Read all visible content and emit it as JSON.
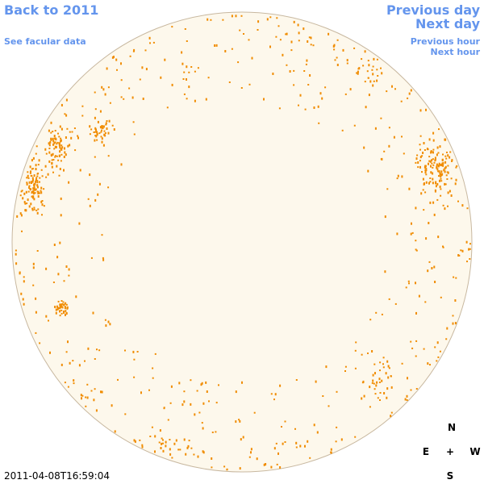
{
  "nav": {
    "back_label": "Back to 2011",
    "prev_day_label": "Previous day",
    "next_day_label": "Next day",
    "facular_label": "See facular data",
    "prev_hour_label": "Previous hour",
    "next_hour_label": "Next hour"
  },
  "compass": {
    "north": "N",
    "south": "S",
    "east": "E",
    "west": "W",
    "center": "+"
  },
  "timestamp": "2011-04-08T16:59:04",
  "colors": {
    "link": "#6495ed",
    "disk_fill": "#fdf8ec",
    "disk_border": "#c8b8a0",
    "feature": "#f08c00"
  }
}
